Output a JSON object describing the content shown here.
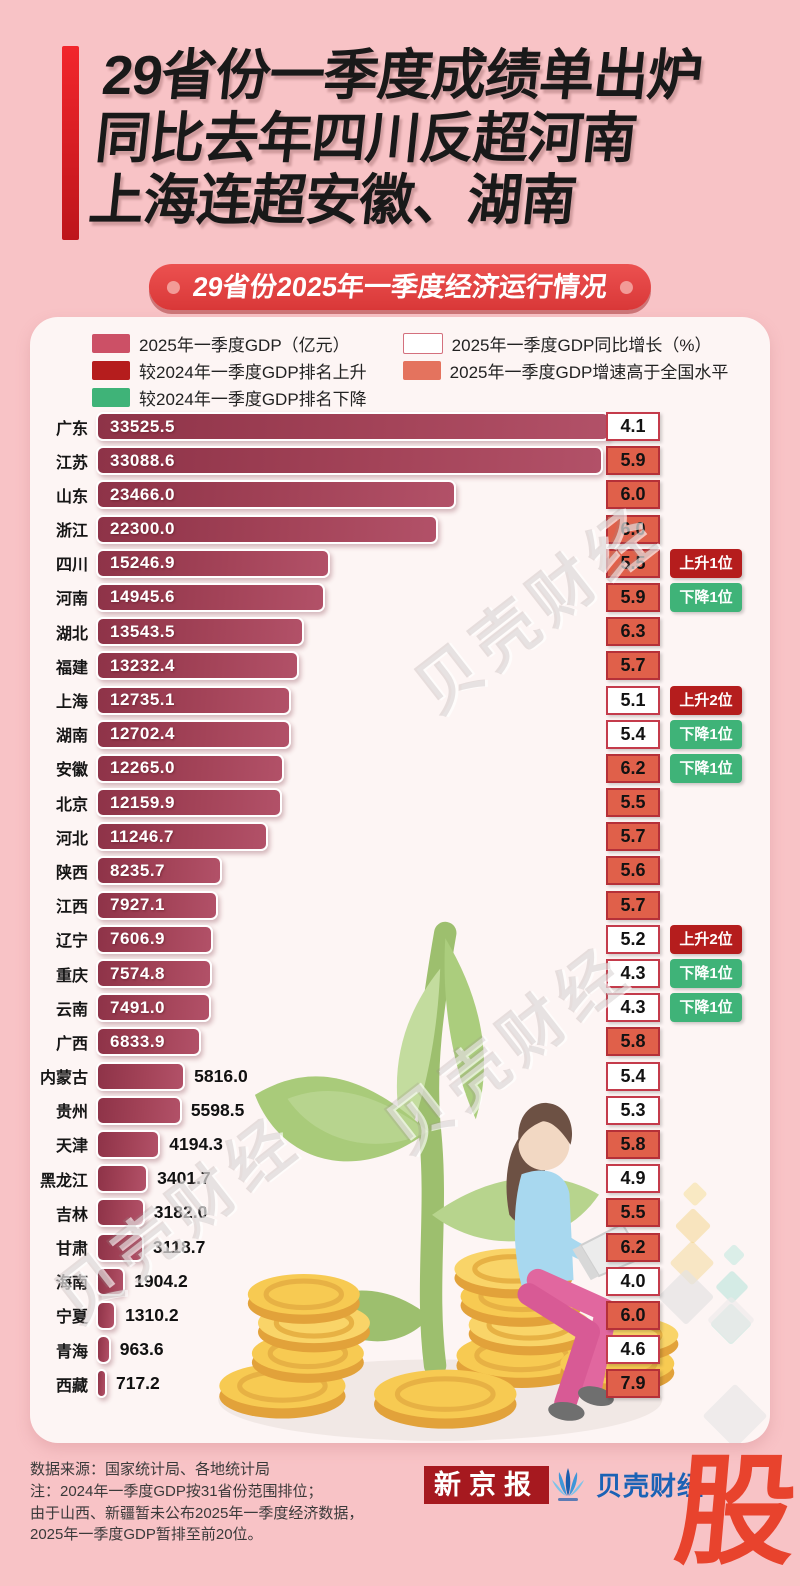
{
  "title": {
    "lines": [
      "29省份一季度成绩单出炉",
      "同比去年四川反超河南",
      "上海连超安徽、湖南"
    ]
  },
  "banner": {
    "text": "29省份2025年一季度经济运行情况"
  },
  "legend": {
    "left": [
      {
        "label": "2025年一季度GDP（亿元）",
        "swatch": "gdp"
      },
      {
        "label": "较2024年一季度GDP排名上升",
        "swatch": "rank-up"
      },
      {
        "label": "较2024年一季度GDP排名下降",
        "swatch": "rank-down"
      }
    ],
    "right": [
      {
        "label": "2025年一季度GDP同比增长（%）",
        "swatch": "growth"
      },
      {
        "label": "2025年一季度GDP增速高于全国水平",
        "swatch": "above-national"
      }
    ]
  },
  "chart_data": {
    "type": "bar",
    "orientation": "horizontal",
    "title": "29省份2025年一季度经济运行情况",
    "categories": [
      "广东",
      "江苏",
      "山东",
      "浙江",
      "四川",
      "河南",
      "湖北",
      "福建",
      "上海",
      "湖南",
      "安徽",
      "北京",
      "河北",
      "陕西",
      "江西",
      "辽宁",
      "重庆",
      "云南",
      "广西",
      "内蒙古",
      "贵州",
      "天津",
      "黑龙江",
      "吉林",
      "甘肃",
      "海南",
      "宁夏",
      "青海",
      "西藏"
    ],
    "series": [
      {
        "name": "2025年一季度GDP（亿元）",
        "values": [
          33525.5,
          33088.6,
          23466.0,
          22300.0,
          15246.9,
          14945.6,
          13543.5,
          13232.4,
          12735.1,
          12702.4,
          12265.0,
          12159.9,
          11246.7,
          8235.7,
          7927.1,
          7606.9,
          7574.8,
          7491.0,
          6833.9,
          5816.0,
          5598.5,
          4194.3,
          3401.7,
          3182.0,
          3118.7,
          1904.2,
          1310.2,
          963.6,
          717.2
        ]
      },
      {
        "name": "2025年一季度GDP同比增长（%）",
        "values": [
          4.1,
          5.9,
          6.0,
          6.0,
          5.5,
          5.9,
          6.3,
          5.7,
          5.1,
          5.4,
          6.2,
          5.5,
          5.7,
          5.6,
          5.7,
          5.2,
          4.3,
          4.3,
          5.8,
          5.4,
          5.3,
          5.8,
          4.9,
          5.5,
          6.2,
          4.0,
          6.0,
          4.6,
          7.9
        ]
      }
    ],
    "above_national_level": [
      false,
      true,
      true,
      true,
      true,
      true,
      true,
      true,
      false,
      false,
      true,
      true,
      true,
      true,
      true,
      false,
      false,
      false,
      true,
      false,
      false,
      true,
      false,
      true,
      true,
      false,
      true,
      false,
      true
    ],
    "rank_changes": {
      "四川": "上升1位",
      "河南": "下降1位",
      "上海": "上升2位",
      "湖南": "下降1位",
      "安徽": "下降1位",
      "辽宁": "上升2位",
      "重庆": "下降1位",
      "云南": "下降1位"
    },
    "xlim": [
      0,
      33525.5
    ],
    "grid": false,
    "legend_position": "top"
  },
  "rows": [
    {
      "label": "广东",
      "value": "33525.5",
      "growth": "4.1",
      "above_national": false,
      "value_inside": true,
      "rank": null
    },
    {
      "label": "江苏",
      "value": "33088.6",
      "growth": "5.9",
      "above_national": true,
      "value_inside": true,
      "rank": null
    },
    {
      "label": "山东",
      "value": "23466.0",
      "growth": "6.0",
      "above_national": true,
      "value_inside": true,
      "rank": null
    },
    {
      "label": "浙江",
      "value": "22300.0",
      "growth": "6.0",
      "above_national": true,
      "value_inside": true,
      "rank": null
    },
    {
      "label": "四川",
      "value": "15246.9",
      "growth": "5.5",
      "above_national": true,
      "value_inside": true,
      "rank": {
        "label": "上升1位",
        "direction": "up"
      }
    },
    {
      "label": "河南",
      "value": "14945.6",
      "growth": "5.9",
      "above_national": true,
      "value_inside": true,
      "rank": {
        "label": "下降1位",
        "direction": "down"
      }
    },
    {
      "label": "湖北",
      "value": "13543.5",
      "growth": "6.3",
      "above_national": true,
      "value_inside": true,
      "rank": null
    },
    {
      "label": "福建",
      "value": "13232.4",
      "growth": "5.7",
      "above_national": true,
      "value_inside": true,
      "rank": null
    },
    {
      "label": "上海",
      "value": "12735.1",
      "growth": "5.1",
      "above_national": false,
      "value_inside": true,
      "rank": {
        "label": "上升2位",
        "direction": "up"
      }
    },
    {
      "label": "湖南",
      "value": "12702.4",
      "growth": "5.4",
      "above_national": false,
      "value_inside": true,
      "rank": {
        "label": "下降1位",
        "direction": "down"
      }
    },
    {
      "label": "安徽",
      "value": "12265.0",
      "growth": "6.2",
      "above_national": true,
      "value_inside": true,
      "rank": {
        "label": "下降1位",
        "direction": "down"
      }
    },
    {
      "label": "北京",
      "value": "12159.9",
      "growth": "5.5",
      "above_national": true,
      "value_inside": true,
      "rank": null
    },
    {
      "label": "河北",
      "value": "11246.7",
      "growth": "5.7",
      "above_national": true,
      "value_inside": true,
      "rank": null
    },
    {
      "label": "陕西",
      "value": "8235.7",
      "growth": "5.6",
      "above_national": true,
      "value_inside": true,
      "rank": null
    },
    {
      "label": "江西",
      "value": "7927.1",
      "growth": "5.7",
      "above_national": true,
      "value_inside": true,
      "rank": null
    },
    {
      "label": "辽宁",
      "value": "7606.9",
      "growth": "5.2",
      "above_national": false,
      "value_inside": true,
      "rank": {
        "label": "上升2位",
        "direction": "up"
      }
    },
    {
      "label": "重庆",
      "value": "7574.8",
      "growth": "4.3",
      "above_national": false,
      "value_inside": true,
      "rank": {
        "label": "下降1位",
        "direction": "down"
      }
    },
    {
      "label": "云南",
      "value": "7491.0",
      "growth": "4.3",
      "above_national": false,
      "value_inside": true,
      "rank": {
        "label": "下降1位",
        "direction": "down"
      }
    },
    {
      "label": "广西",
      "value": "6833.9",
      "growth": "5.8",
      "above_national": true,
      "value_inside": true,
      "rank": null
    },
    {
      "label": "内蒙古",
      "value": "5816.0",
      "growth": "5.4",
      "above_national": false,
      "value_inside": false,
      "rank": null
    },
    {
      "label": "贵州",
      "value": "5598.5",
      "growth": "5.3",
      "above_national": false,
      "value_inside": false,
      "rank": null
    },
    {
      "label": "天津",
      "value": "4194.3",
      "growth": "5.8",
      "above_national": true,
      "value_inside": false,
      "rank": null
    },
    {
      "label": "黑龙江",
      "value": "3401.7",
      "growth": "4.9",
      "above_national": false,
      "value_inside": false,
      "rank": null
    },
    {
      "label": "吉林",
      "value": "3182.0",
      "growth": "5.5",
      "above_national": true,
      "value_inside": false,
      "rank": null
    },
    {
      "label": "甘肃",
      "value": "3118.7",
      "growth": "6.2",
      "above_national": true,
      "value_inside": false,
      "rank": null
    },
    {
      "label": "海南",
      "value": "1904.2",
      "growth": "4.0",
      "above_national": false,
      "value_inside": false,
      "rank": null
    },
    {
      "label": "宁夏",
      "value": "1310.2",
      "growth": "6.0",
      "above_national": true,
      "value_inside": false,
      "rank": null
    },
    {
      "label": "青海",
      "value": "963.6",
      "growth": "4.6",
      "above_national": false,
      "value_inside": false,
      "rank": null
    },
    {
      "label": "西藏",
      "value": "717.2",
      "growth": "7.9",
      "above_national": true,
      "value_inside": false,
      "rank": null
    }
  ],
  "watermark": {
    "text": "贝壳财经"
  },
  "footer": {
    "note_lines": [
      "数据来源：国家统计局、各地统计局",
      "注：2024年一季度GDP按31省份范围排位；",
      "由于山西、新疆暂未公布2025年一季度经济数据，",
      "2025年一季度GDP暂排至前20位。"
    ],
    "logo_xinjingbao": "新京报",
    "logo_beike": "贝壳财经",
    "corner_glyph": "股"
  },
  "colors": {
    "background": "#f8c3c6",
    "card": "#fdf5f4",
    "accent_red": "#e0282e",
    "banner_red": "#d93838",
    "bar_dark": "#8e3348",
    "bar_light": "#b25168",
    "badge_above": "#e0604a",
    "badge_border": "#c43b4b",
    "rank_up": "#b51d1d",
    "rank_down": "#3fb378",
    "legend_gdp": "#cc5066",
    "logo_xjb_bg": "#a6191f",
    "logo_beike_blue": "#1b62b5",
    "stock_glyph": "#e8432d"
  }
}
